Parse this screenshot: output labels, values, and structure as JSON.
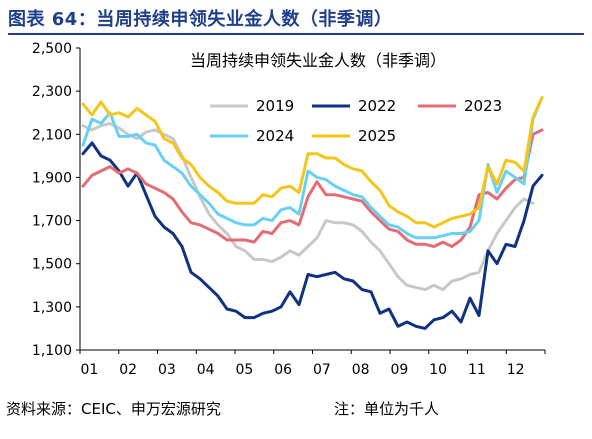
{
  "figure": {
    "title": "图表 64：当周持续申领失业金人数（非季调）",
    "source": "资料来源：CEIC、申万宏源研究",
    "note": "注：单位为千人"
  },
  "chart_data": {
    "type": "line",
    "title": "当周持续申领失业金人数（非季调）",
    "xlabel": "",
    "ylabel": "",
    "ylim": [
      1100,
      2500
    ],
    "yticks": [
      "1,100",
      "1,300",
      "1,500",
      "1,700",
      "1,900",
      "2,100",
      "2,300",
      "2,500"
    ],
    "ytick_values": [
      1100,
      1300,
      1500,
      1700,
      1900,
      2100,
      2300,
      2500
    ],
    "xticks": [
      "01",
      "02",
      "03",
      "04",
      "05",
      "06",
      "07",
      "08",
      "09",
      "10",
      "11",
      "12"
    ],
    "x_unit": "week of year (1–52)",
    "grid": false,
    "legend_position": "upper-center",
    "series": [
      {
        "name": "2019",
        "color": "#c8c8c8",
        "weeks": [
          1,
          2,
          3,
          4,
          5,
          6,
          7,
          8,
          9,
          10,
          11,
          12,
          13,
          14,
          15,
          16,
          17,
          18,
          19,
          20,
          21,
          22,
          23,
          24,
          25,
          26,
          27,
          28,
          29,
          30,
          31,
          32,
          33,
          34,
          35,
          36,
          37,
          38,
          39,
          40,
          41,
          42,
          43,
          44,
          45,
          46,
          47,
          48,
          49,
          50,
          51
        ],
        "values": [
          2140,
          2120,
          2140,
          2150,
          2130,
          2100,
          2080,
          2110,
          2120,
          2100,
          2080,
          2000,
          1900,
          1810,
          1730,
          1680,
          1640,
          1580,
          1560,
          1520,
          1520,
          1510,
          1530,
          1560,
          1540,
          1580,
          1620,
          1700,
          1690,
          1690,
          1680,
          1650,
          1600,
          1560,
          1500,
          1440,
          1400,
          1390,
          1380,
          1400,
          1380,
          1420,
          1430,
          1450,
          1460,
          1560,
          1640,
          1700,
          1760,
          1800,
          1780
        ]
      },
      {
        "name": "2022",
        "color": "#0f3282",
        "weeks": [
          1,
          2,
          3,
          4,
          5,
          6,
          7,
          8,
          9,
          10,
          11,
          12,
          13,
          14,
          15,
          16,
          17,
          18,
          19,
          20,
          21,
          22,
          23,
          24,
          25,
          26,
          27,
          28,
          29,
          30,
          31,
          32,
          33,
          34,
          35,
          36,
          37,
          38,
          39,
          40,
          41,
          42,
          43,
          44,
          45,
          46,
          47,
          48,
          49,
          50,
          51,
          52
        ],
        "values": [
          2010,
          2060,
          2000,
          1980,
          1930,
          1860,
          1920,
          1820,
          1720,
          1670,
          1640,
          1580,
          1460,
          1430,
          1390,
          1350,
          1290,
          1280,
          1250,
          1250,
          1270,
          1280,
          1300,
          1370,
          1310,
          1450,
          1440,
          1450,
          1460,
          1430,
          1420,
          1380,
          1370,
          1270,
          1290,
          1210,
          1230,
          1210,
          1200,
          1240,
          1250,
          1280,
          1230,
          1340,
          1260,
          1560,
          1500,
          1590,
          1580,
          1700,
          1860,
          1910
        ]
      },
      {
        "name": "2023",
        "color": "#e46d73",
        "weeks": [
          1,
          2,
          3,
          4,
          5,
          6,
          7,
          8,
          9,
          10,
          11,
          12,
          13,
          14,
          15,
          16,
          17,
          18,
          19,
          20,
          21,
          22,
          23,
          24,
          25,
          26,
          27,
          28,
          29,
          30,
          31,
          32,
          33,
          34,
          35,
          36,
          37,
          38,
          39,
          40,
          41,
          42,
          43,
          44,
          45,
          46,
          47,
          48,
          49,
          50,
          51,
          52
        ],
        "values": [
          1860,
          1910,
          1930,
          1950,
          1920,
          1940,
          1920,
          1870,
          1850,
          1830,
          1800,
          1740,
          1690,
          1680,
          1660,
          1640,
          1610,
          1610,
          1610,
          1600,
          1650,
          1640,
          1690,
          1700,
          1680,
          1810,
          1880,
          1820,
          1820,
          1810,
          1800,
          1790,
          1740,
          1700,
          1660,
          1650,
          1610,
          1590,
          1590,
          1580,
          1600,
          1580,
          1610,
          1670,
          1820,
          1830,
          1800,
          1850,
          1890,
          1900,
          2100,
          2120
        ]
      },
      {
        "name": "2024",
        "color": "#67d0f4",
        "weeks": [
          1,
          2,
          3,
          4,
          5,
          6,
          7,
          8,
          9,
          10,
          11,
          12,
          13,
          14,
          15,
          16,
          17,
          18,
          19,
          20,
          21,
          22,
          23,
          24,
          25,
          26,
          27,
          28,
          29,
          30,
          31,
          32,
          33,
          34,
          35,
          36,
          37,
          38,
          39,
          40,
          41,
          42,
          43,
          44,
          45,
          46,
          47,
          48,
          49,
          50,
          51,
          52
        ],
        "values": [
          2050,
          2170,
          2150,
          2200,
          2090,
          2090,
          2100,
          2060,
          2050,
          1980,
          1950,
          1920,
          1860,
          1820,
          1780,
          1730,
          1710,
          1690,
          1680,
          1680,
          1710,
          1700,
          1750,
          1760,
          1730,
          1930,
          1900,
          1890,
          1860,
          1840,
          1820,
          1810,
          1760,
          1720,
          1680,
          1670,
          1640,
          1620,
          1620,
          1620,
          1630,
          1640,
          1640,
          1650,
          1700,
          1960,
          1830,
          1930,
          1900,
          1870,
          2170,
          2270
        ]
      },
      {
        "name": "2025",
        "color": "#f5c518",
        "weeks": [
          1,
          2,
          3,
          4,
          5,
          6,
          7,
          8,
          9,
          10,
          11,
          12,
          13,
          14,
          15,
          16,
          17,
          18,
          19,
          20,
          21,
          22,
          23,
          24,
          25,
          26,
          27,
          28,
          29,
          30,
          31,
          32,
          33,
          34,
          35,
          36,
          37,
          38,
          39,
          40,
          41,
          42,
          43,
          44,
          45,
          46,
          47,
          48,
          49,
          50,
          51,
          52
        ],
        "values": [
          2240,
          2190,
          2250,
          2190,
          2200,
          2180,
          2220,
          2190,
          2160,
          2080,
          2060,
          1990,
          1960,
          1900,
          1860,
          1830,
          1790,
          1780,
          1780,
          1780,
          1820,
          1810,
          1850,
          1860,
          1830,
          2010,
          2010,
          1990,
          1990,
          1960,
          1940,
          1930,
          1880,
          1840,
          1770,
          1740,
          1720,
          1690,
          1690,
          1670,
          1690,
          1710,
          1720,
          1730,
          1760,
          1950,
          1870,
          1980,
          1970,
          1930,
          2180,
          2270
        ]
      }
    ]
  }
}
